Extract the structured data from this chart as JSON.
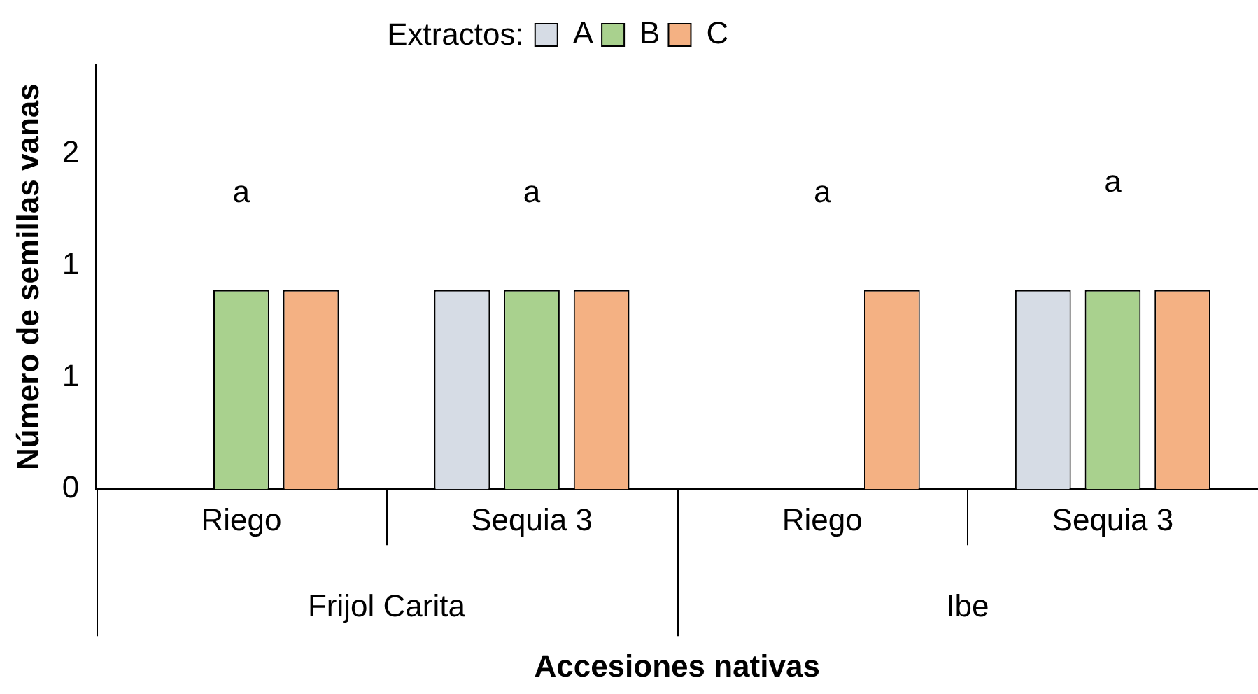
{
  "chart_data": {
    "type": "bar",
    "xlabel": "Accesiones nativas",
    "ylabel": "Número de semillas vanas",
    "legend_title": "Extractos:",
    "categories": [
      "Riego",
      "Sequia 3",
      "Riego",
      "Sequia 3"
    ],
    "series": [
      {
        "name": "A",
        "color": "#d6dce5",
        "values": [
          0,
          0.89,
          0,
          0.89
        ]
      },
      {
        "name": "B",
        "color": "#a9d18e",
        "values": [
          0.89,
          0.89,
          0,
          0.89
        ]
      },
      {
        "name": "C",
        "color": "#f4b183",
        "values": [
          0.89,
          0.89,
          0.89,
          0.89
        ]
      }
    ],
    "ylim": [
      0,
      1.9
    ],
    "yticks": [
      0,
      {
        "value": 0.5,
        "label": "1"
      },
      {
        "value": 1,
        "label": "1"
      },
      {
        "value": 1.5,
        "label": "2"
      }
    ],
    "grid": false,
    "legend": "top",
    "annotations": [
      "a",
      "a",
      "a",
      "a",
      "Frijol Carita",
      "Ibe"
    ]
  }
}
